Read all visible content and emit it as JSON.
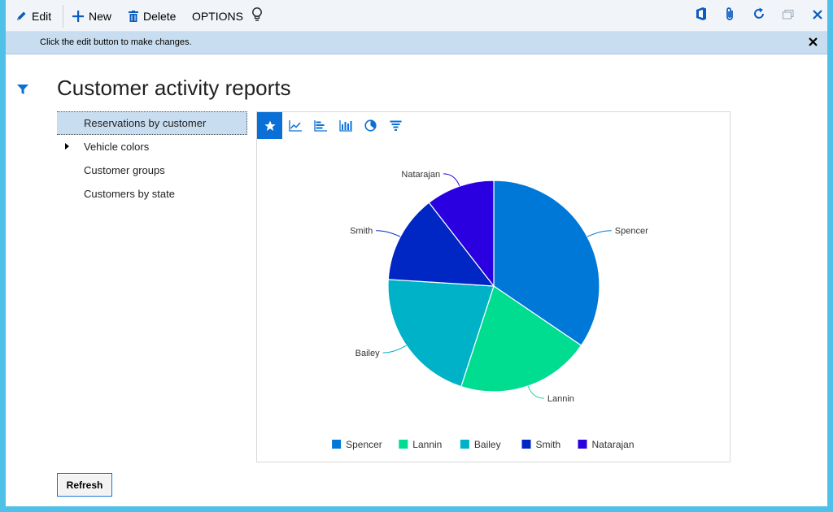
{
  "toolbar": {
    "edit_label": "Edit",
    "new_label": "New",
    "delete_label": "Delete",
    "options_label": "OPTIONS",
    "right_icons": [
      "office-icon",
      "attachment-icon",
      "refresh-icon",
      "restore-window-icon",
      "close-icon"
    ]
  },
  "infobar": {
    "message": "Click the edit button to make changes."
  },
  "page": {
    "title": "Customer activity reports"
  },
  "tree": {
    "items": [
      {
        "label": "Reservations by customer",
        "selected": true,
        "expandable": false
      },
      {
        "label": "Vehicle colors",
        "selected": false,
        "expandable": true
      },
      {
        "label": "Customer groups",
        "selected": false,
        "expandable": false
      },
      {
        "label": "Customers by state",
        "selected": false,
        "expandable": false
      }
    ]
  },
  "chart_tools": [
    "star-icon",
    "line-chart-icon",
    "bar-chart-icon",
    "column-chart-icon",
    "pie-chart-icon",
    "funnel-chart-icon"
  ],
  "colors": {
    "accent": "#0a6fd6",
    "window_border": "#4fc1e9",
    "infobar_bg": "#c8ddef"
  },
  "chart_data": {
    "type": "pie",
    "title": "",
    "slices": [
      {
        "label": "Spencer",
        "value": 34.5,
        "color": "#0078d7"
      },
      {
        "label": "Lannin",
        "value": 20.5,
        "color": "#00dd90"
      },
      {
        "label": "Bailey",
        "value": 21.0,
        "color": "#00b2c7"
      },
      {
        "label": "Smith",
        "value": 13.5,
        "color": "#0027c4"
      },
      {
        "label": "Natarajan",
        "value": 10.5,
        "color": "#2a00e0"
      }
    ],
    "legend": {
      "position": "bottom",
      "labels": [
        "Spencer",
        "Lannin",
        "Bailey",
        "Smith",
        "Natarajan"
      ]
    }
  },
  "buttons": {
    "refresh_label": "Refresh"
  }
}
